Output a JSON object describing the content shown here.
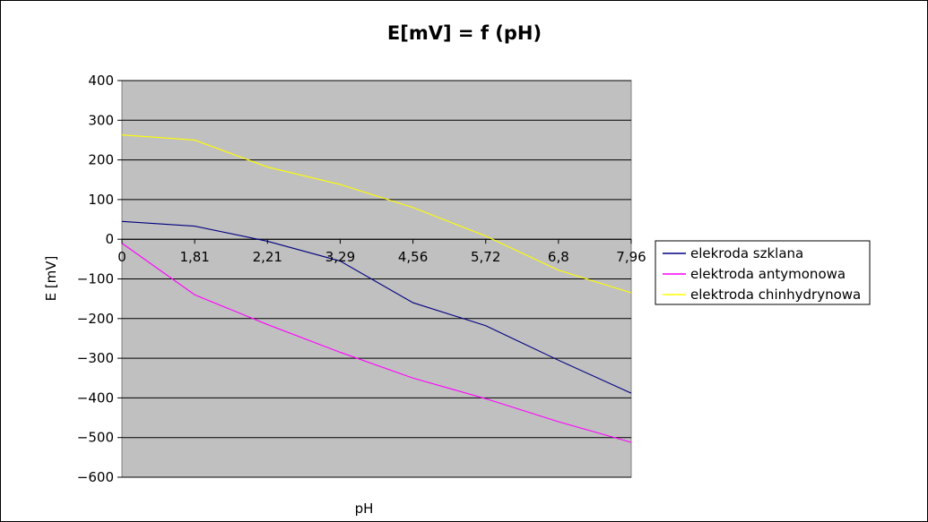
{
  "chart_data": {
    "type": "line",
    "title": "E[mV] = f (pH)",
    "xlabel": "pH",
    "ylabel": "E [mV]",
    "categories": [
      "0",
      "1,81",
      "2,21",
      "3,29",
      "4,56",
      "5,72",
      "6,8",
      "7,96"
    ],
    "ylim": [
      -600,
      400
    ],
    "yticks": [
      400,
      300,
      200,
      100,
      0,
      -100,
      -200,
      -300,
      -400,
      -500,
      -600
    ],
    "grid": true,
    "legend_position": "right",
    "plot_background": "#c0c0c0",
    "series": [
      {
        "name": "elekroda szklana",
        "color": "#000080",
        "values": [
          45,
          33,
          -5,
          -55,
          -160,
          -218,
          -305,
          -388
        ]
      },
      {
        "name": "elektroda antymonowa",
        "color": "#ff00ff",
        "values": [
          -10,
          -140,
          -215,
          -285,
          -350,
          -402,
          -460,
          -512
        ]
      },
      {
        "name": "elektroda chinhydrynowa",
        "color": "#ffff00",
        "values": [
          263,
          250,
          182,
          138,
          80,
          8,
          -78,
          -135
        ]
      }
    ]
  }
}
